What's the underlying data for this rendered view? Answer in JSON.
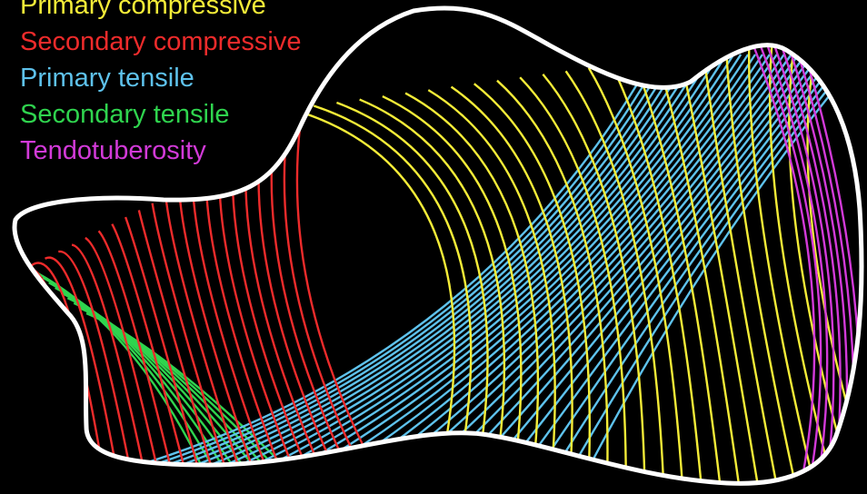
{
  "legend": {
    "items": [
      {
        "key": "primary_compressive",
        "label": "Primary compressive",
        "color": "#f4ec38"
      },
      {
        "key": "secondary_compressive",
        "label": "Secondary compressive",
        "color": "#ee2b2b"
      },
      {
        "key": "primary_tensile",
        "label": "Primary tensile",
        "color": "#5ec2ec"
      },
      {
        "key": "secondary_tensile",
        "label": "Secondary tensile",
        "color": "#2fd44e"
      },
      {
        "key": "tendotuberosity",
        "label": "Tendotuberosity",
        "color": "#d23ad8"
      }
    ]
  },
  "outline_color": "#ffffff",
  "background_color": "#000000"
}
